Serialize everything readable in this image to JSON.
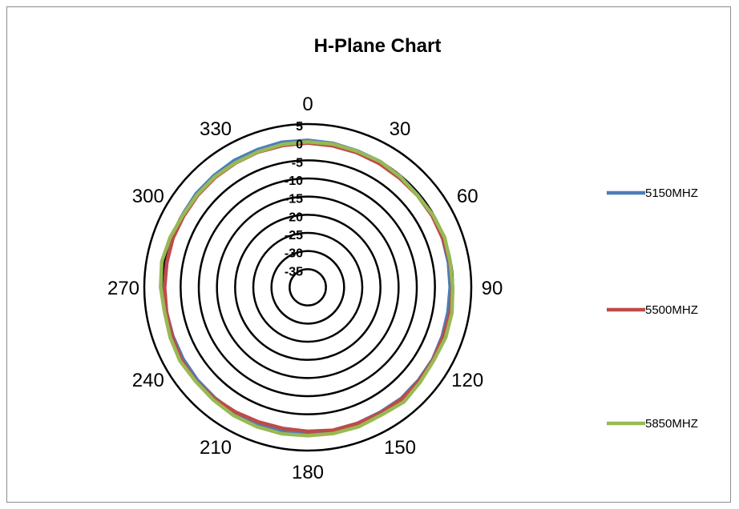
{
  "chart_data": {
    "type": "radar",
    "title": "H-Plane Chart",
    "angle_ticks": [
      0,
      30,
      60,
      90,
      120,
      150,
      180,
      210,
      240,
      270,
      300,
      330
    ],
    "angle_labels": [
      "0",
      "30",
      "60",
      "90",
      "120",
      "150",
      "180",
      "210",
      "240",
      "270",
      "300",
      "330"
    ],
    "radial_ticks": [
      5,
      0,
      -5,
      -10,
      -15,
      -20,
      -25,
      -30,
      -35
    ],
    "radial_labels": [
      "5",
      "0",
      "-5",
      "-10",
      "-15",
      "-20",
      "-25",
      "-30",
      "-35"
    ],
    "rlim": [
      -40,
      5
    ],
    "grid": true,
    "legend_position": "right",
    "angles_deg": [
      0,
      10,
      20,
      30,
      40,
      50,
      60,
      70,
      80,
      90,
      100,
      110,
      120,
      130,
      140,
      150,
      160,
      170,
      180,
      190,
      200,
      210,
      220,
      230,
      240,
      250,
      260,
      270,
      280,
      290,
      300,
      310,
      320,
      330,
      340,
      350
    ],
    "series": [
      {
        "name": "5150MHZ",
        "color": "#4a7ebb",
        "values": [
          0.5,
          0.3,
          0.0,
          0.0,
          -0.3,
          -0.5,
          -0.3,
          -0.5,
          -0.7,
          -0.8,
          -0.8,
          -0.6,
          -0.3,
          -0.2,
          0.0,
          -0.2,
          -0.1,
          0.1,
          0.2,
          0.1,
          0.0,
          0.0,
          -0.2,
          -0.3,
          -0.4,
          -0.5,
          -0.5,
          -0.5,
          -0.6,
          -0.4,
          -0.2,
          0.1,
          0.2,
          0.4,
          0.4,
          0.6
        ]
      },
      {
        "name": "5500MHZ",
        "color": "#be4b48",
        "values": [
          -0.2,
          -0.4,
          -0.5,
          -0.6,
          -0.7,
          -0.6,
          -0.5,
          -0.5,
          -0.3,
          -0.2,
          -0.2,
          -0.3,
          -0.2,
          0.0,
          0.2,
          0.0,
          -0.1,
          0.0,
          -0.3,
          -0.5,
          -0.5,
          -0.3,
          0.0,
          0.2,
          0.1,
          -0.3,
          -0.5,
          -0.6,
          -0.6,
          -0.5,
          -0.6,
          -0.5,
          -0.4,
          -0.4,
          -0.3,
          -0.3
        ]
      },
      {
        "name": "5850MHZ",
        "color": "#98b954",
        "values": [
          0.1,
          0.1,
          -0.1,
          0.0,
          -0.3,
          -0.6,
          -0.2,
          0.1,
          -0.2,
          -0.1,
          0.3,
          0.4,
          0.1,
          0.5,
          1.2,
          0.6,
          0.9,
          0.9,
          0.9,
          1.0,
          0.9,
          0.8,
          0.5,
          0.3,
          0.6,
          0.3,
          0.0,
          0.5,
          0.8,
          0.3,
          -0.3,
          -0.3,
          -0.2,
          -0.3,
          -0.2,
          0.0
        ]
      }
    ]
  }
}
